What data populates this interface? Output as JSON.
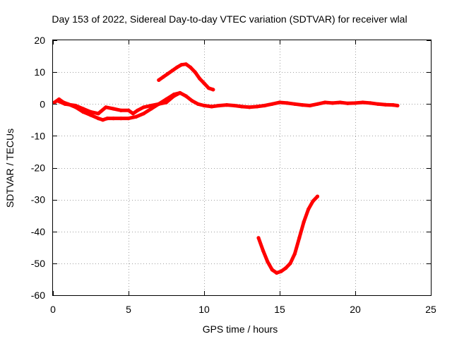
{
  "chart_data": {
    "type": "line",
    "title": "Day 153 of 2022, Sidereal Day-to-day VTEC variation (SDTVAR) for receiver wlal",
    "xlabel": "GPS time / hours",
    "ylabel": "SDTVAR / TECUs",
    "xlim": [
      0,
      25
    ],
    "ylim": [
      -60,
      20
    ],
    "xticks": [
      0,
      5,
      10,
      15,
      20,
      25
    ],
    "yticks": [
      -60,
      -50,
      -40,
      -30,
      -20,
      -10,
      0,
      10,
      20
    ],
    "grid": true,
    "color": "#ff0000",
    "series": [
      {
        "name": "main-trace",
        "x": [
          0.1,
          0.4,
          0.7,
          1.0,
          1.5,
          2.0,
          2.5,
          3.0,
          3.3,
          3.6,
          4.0,
          4.5,
          5.0,
          5.5,
          6.0,
          6.5,
          7.0,
          7.5,
          8.0,
          8.4,
          8.8,
          9.2,
          9.6,
          10.0,
          10.5,
          11.0,
          11.5,
          12.0,
          12.5,
          13.0,
          13.5,
          14.0,
          14.5,
          15.0,
          15.5,
          16.0,
          16.5,
          17.0,
          17.5,
          18.0,
          18.5,
          19.0,
          19.5,
          20.0,
          20.5,
          21.0,
          21.5,
          22.0,
          22.5,
          22.8
        ],
        "y": [
          0.5,
          1.5,
          0.5,
          0.0,
          -1.0,
          -2.5,
          -3.5,
          -4.5,
          -5.0,
          -4.5,
          -4.5,
          -4.5,
          -4.5,
          -4.0,
          -3.0,
          -1.5,
          0.0,
          1.5,
          3.0,
          3.5,
          2.5,
          1.0,
          0.0,
          -0.5,
          -0.8,
          -0.5,
          -0.3,
          -0.5,
          -0.8,
          -1.0,
          -0.8,
          -0.5,
          0.0,
          0.5,
          0.3,
          0.0,
          -0.3,
          -0.5,
          0.0,
          0.5,
          0.3,
          0.5,
          0.2,
          0.3,
          0.5,
          0.3,
          0.0,
          -0.2,
          -0.3,
          -0.5
        ]
      },
      {
        "name": "early-low-branch",
        "x": [
          0.3,
          0.8,
          1.5,
          2.0,
          2.5,
          3.0,
          3.5,
          4.0,
          4.5,
          5.0,
          5.3,
          5.6,
          6.0,
          6.5,
          7.0,
          7.5,
          8.0,
          8.4
        ],
        "y": [
          1.0,
          0.0,
          -0.5,
          -1.5,
          -2.5,
          -3.0,
          -1.0,
          -1.5,
          -2.0,
          -2.0,
          -3.0,
          -2.0,
          -1.0,
          -0.5,
          0.0,
          0.5,
          2.5,
          3.5
        ]
      },
      {
        "name": "midday-bump",
        "x": [
          7.0,
          7.3,
          7.6,
          7.9,
          8.2,
          8.5,
          8.8,
          9.1,
          9.4,
          9.7,
          10.0,
          10.3,
          10.6
        ],
        "y": [
          7.5,
          8.5,
          9.5,
          10.5,
          11.5,
          12.3,
          12.5,
          11.5,
          10.0,
          8.0,
          6.5,
          5.0,
          4.5
        ]
      },
      {
        "name": "afternoon-dip",
        "x": [
          13.6,
          13.9,
          14.2,
          14.5,
          14.8,
          15.1,
          15.4,
          15.7,
          16.0,
          16.3,
          16.6,
          16.9,
          17.2,
          17.5
        ],
        "y": [
          -42.0,
          -46.0,
          -49.5,
          -52.0,
          -53.0,
          -52.5,
          -51.5,
          -50.0,
          -47.0,
          -42.0,
          -37.0,
          -33.0,
          -30.5,
          -29.0
        ]
      }
    ]
  }
}
